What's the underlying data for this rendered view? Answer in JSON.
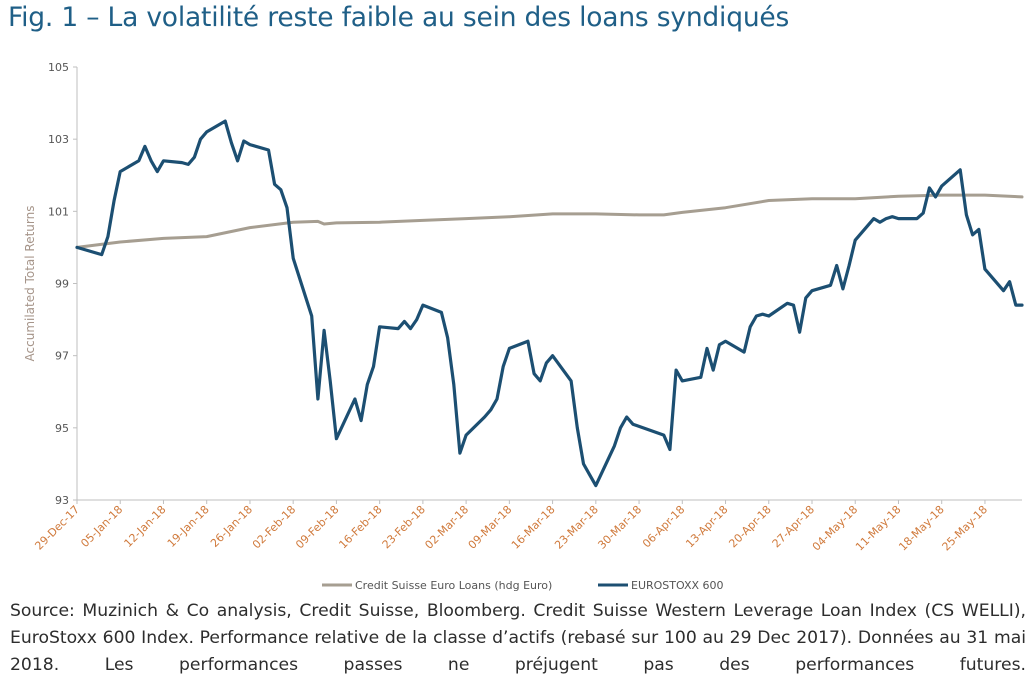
{
  "page": {
    "title": "Fig. 1 – La volatilité reste faible au sein des loans syndiqués",
    "source": "Source: Muzinich & Co analysis, Credit Suisse, Bloomberg. Credit Suisse Western Leverage Loan Index (CS WELLI), EuroStoxx 600 Index. Performance relative de la classe d’actifs (rebasé sur 100 au 29 Dec 2017). Données au 31 mai 2018. Les performances passes ne préjugent pas des performances futures."
  },
  "colors": {
    "title": "#1f5f87",
    "loans_series": "#a69e91",
    "eurostoxx_series": "#1c4f72",
    "axis": "#bfbfbf",
    "x_tick_text": "#d07a3c"
  },
  "chart_data": {
    "type": "line",
    "title": "",
    "xlabel": "",
    "ylabel": "Accumilated Total Returns",
    "ylim": [
      93,
      105
    ],
    "yticks": [
      93,
      95,
      97,
      99,
      101,
      103,
      105
    ],
    "xlim": [
      "2017-12-29",
      "2018-05-31"
    ],
    "xtick_labels": [
      "29-Dec-17",
      "05-Jan-18",
      "12-Jan-18",
      "19-Jan-18",
      "26-Jan-18",
      "02-Feb-18",
      "09-Feb-18",
      "16-Feb-18",
      "23-Feb-18",
      "02-Mar-18",
      "09-Mar-18",
      "16-Mar-18",
      "23-Mar-18",
      "30-Mar-18",
      "06-Apr-18",
      "13-Apr-18",
      "20-Apr-18",
      "27-Apr-18",
      "04-May-18",
      "11-May-18",
      "18-May-18",
      "25-May-18"
    ],
    "xtick_dates": [
      "2017-12-29",
      "2018-01-05",
      "2018-01-12",
      "2018-01-19",
      "2018-01-26",
      "2018-02-02",
      "2018-02-09",
      "2018-02-16",
      "2018-02-23",
      "2018-03-02",
      "2018-03-09",
      "2018-03-16",
      "2018-03-23",
      "2018-03-30",
      "2018-04-06",
      "2018-04-13",
      "2018-04-20",
      "2018-04-27",
      "2018-05-04",
      "2018-05-11",
      "2018-05-18",
      "2018-05-25"
    ],
    "grid": false,
    "legend_position": "bottom",
    "series": [
      {
        "name": "Credit Suisse Euro Loans (hdg Euro)",
        "x": [
          "2017-12-29",
          "2018-01-05",
          "2018-01-12",
          "2018-01-19",
          "2018-01-26",
          "2018-02-02",
          "2018-02-06",
          "2018-02-07",
          "2018-02-09",
          "2018-02-16",
          "2018-02-23",
          "2018-03-02",
          "2018-03-09",
          "2018-03-16",
          "2018-03-23",
          "2018-03-30",
          "2018-04-03",
          "2018-04-06",
          "2018-04-13",
          "2018-04-20",
          "2018-04-27",
          "2018-05-01",
          "2018-05-04",
          "2018-05-11",
          "2018-05-18",
          "2018-05-25",
          "2018-05-31"
        ],
        "y": [
          100.0,
          100.15,
          100.25,
          100.3,
          100.55,
          100.7,
          100.72,
          100.65,
          100.68,
          100.7,
          100.75,
          100.8,
          100.85,
          100.93,
          100.93,
          100.9,
          100.9,
          100.97,
          101.1,
          101.3,
          101.35,
          101.35,
          101.35,
          101.42,
          101.45,
          101.45,
          101.4
        ]
      },
      {
        "name": "EUROSTOXX 600",
        "x": [
          "2017-12-29",
          "2018-01-02",
          "2018-01-03",
          "2018-01-04",
          "2018-01-05",
          "2018-01-08",
          "2018-01-09",
          "2018-01-10",
          "2018-01-11",
          "2018-01-12",
          "2018-01-15",
          "2018-01-16",
          "2018-01-17",
          "2018-01-18",
          "2018-01-19",
          "2018-01-22",
          "2018-01-23",
          "2018-01-24",
          "2018-01-25",
          "2018-01-26",
          "2018-01-29",
          "2018-01-30",
          "2018-01-31",
          "2018-02-01",
          "2018-02-02",
          "2018-02-05",
          "2018-02-06",
          "2018-02-07",
          "2018-02-08",
          "2018-02-09",
          "2018-02-12",
          "2018-02-13",
          "2018-02-14",
          "2018-02-15",
          "2018-02-16",
          "2018-02-19",
          "2018-02-20",
          "2018-02-21",
          "2018-02-22",
          "2018-02-23",
          "2018-02-26",
          "2018-02-27",
          "2018-02-28",
          "2018-03-01",
          "2018-03-02",
          "2018-03-05",
          "2018-03-06",
          "2018-03-07",
          "2018-03-08",
          "2018-03-09",
          "2018-03-12",
          "2018-03-13",
          "2018-03-14",
          "2018-03-15",
          "2018-03-16",
          "2018-03-19",
          "2018-03-20",
          "2018-03-21",
          "2018-03-22",
          "2018-03-23",
          "2018-03-26",
          "2018-03-27",
          "2018-03-28",
          "2018-03-29",
          "2018-04-03",
          "2018-04-04",
          "2018-04-05",
          "2018-04-06",
          "2018-04-09",
          "2018-04-10",
          "2018-04-11",
          "2018-04-12",
          "2018-04-13",
          "2018-04-16",
          "2018-04-17",
          "2018-04-18",
          "2018-04-19",
          "2018-04-20",
          "2018-04-23",
          "2018-04-24",
          "2018-04-25",
          "2018-04-26",
          "2018-04-27",
          "2018-04-30",
          "2018-05-01",
          "2018-05-02",
          "2018-05-03",
          "2018-05-04",
          "2018-05-07",
          "2018-05-08",
          "2018-05-09",
          "2018-05-10",
          "2018-05-11",
          "2018-05-14",
          "2018-05-15",
          "2018-05-16",
          "2018-05-17",
          "2018-05-18",
          "2018-05-21",
          "2018-05-22",
          "2018-05-23",
          "2018-05-24",
          "2018-05-25",
          "2018-05-28",
          "2018-05-29",
          "2018-05-30",
          "2018-05-31"
        ],
        "y": [
          100.0,
          99.8,
          100.3,
          101.3,
          102.1,
          102.4,
          102.8,
          102.4,
          102.1,
          102.4,
          102.35,
          102.3,
          102.5,
          103.0,
          103.2,
          103.5,
          102.9,
          102.4,
          102.95,
          102.85,
          102.7,
          101.75,
          101.6,
          101.1,
          99.7,
          98.1,
          95.8,
          97.7,
          96.3,
          94.7,
          95.8,
          95.2,
          96.2,
          96.7,
          97.8,
          97.75,
          97.95,
          97.75,
          98.0,
          98.4,
          98.2,
          97.5,
          96.2,
          94.3,
          94.8,
          95.3,
          95.5,
          95.8,
          96.7,
          97.2,
          97.4,
          96.5,
          96.3,
          96.8,
          97.0,
          96.3,
          95.0,
          94.0,
          93.7,
          93.4,
          94.5,
          95.0,
          95.3,
          95.1,
          94.8,
          94.4,
          96.6,
          96.3,
          96.4,
          97.2,
          96.6,
          97.3,
          97.4,
          97.1,
          97.8,
          98.1,
          98.15,
          98.1,
          98.45,
          98.4,
          97.65,
          98.6,
          98.8,
          98.95,
          99.5,
          98.85,
          99.5,
          100.2,
          100.8,
          100.7,
          100.8,
          100.85,
          100.8,
          100.8,
          100.95,
          101.65,
          101.4,
          101.7,
          102.15,
          100.9,
          100.35,
          100.5,
          99.4,
          98.8,
          99.05,
          98.4,
          98.4
        ]
      }
    ]
  }
}
